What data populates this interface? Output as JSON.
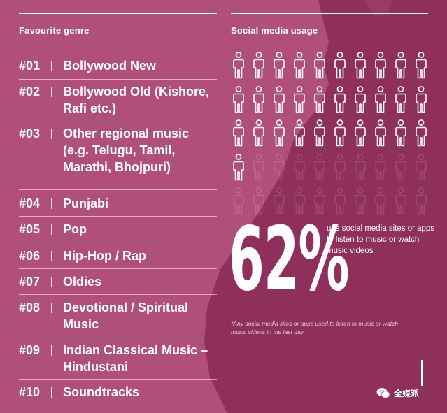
{
  "left": {
    "title": "Favourite genre",
    "genres": [
      {
        "rank": "#01",
        "name": "Bollywood New"
      },
      {
        "rank": "#02",
        "name": "Bollywood Old (Kishore, Rafi etc.)"
      },
      {
        "rank": "#03",
        "name": "Other regional music (e.g. Telugu, Tamil, Marathi, Bhojpuri)"
      },
      {
        "rank": "#04",
        "name": "Punjabi"
      },
      {
        "rank": "#05",
        "name": "Pop"
      },
      {
        "rank": "#06",
        "name": "Hip-Hop / Rap"
      },
      {
        "rank": "#07",
        "name": "Oldies"
      },
      {
        "rank": "#08",
        "name": "Devotional / Spiritual Music"
      },
      {
        "rank": "#09",
        "name": "Indian Classical Music – Hindustani"
      },
      {
        "rank": "#10",
        "name": "Soundtracks"
      }
    ]
  },
  "right": {
    "title": "Social media usage",
    "icon_total": 50,
    "icon_filled": 31,
    "percent": "62%",
    "description": "use social media sites or apps to listen to music or watch music videos",
    "footnote": "*Any social media sites or apps used to listen to music or watch music videos in the last day"
  },
  "watermark": {
    "icon": "wechat-icon",
    "text": "全媒派"
  },
  "colors": {
    "background": "#b0507a",
    "map": "#8f2f5c",
    "text": "#ffffff"
  }
}
